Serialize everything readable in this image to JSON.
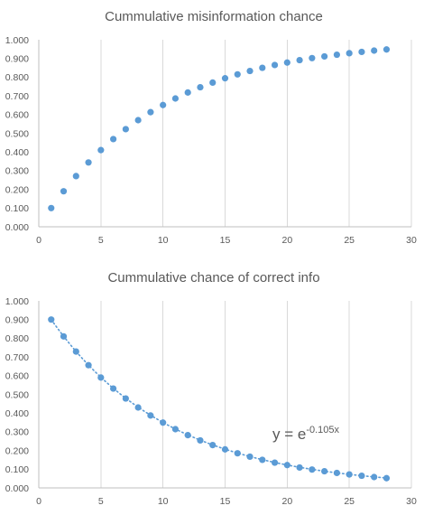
{
  "chart_data": [
    {
      "type": "scatter",
      "title": "Cummulative misinformation chance",
      "xlabel": "",
      "ylabel": "",
      "xlim": [
        0,
        30
      ],
      "ylim": [
        0,
        1
      ],
      "x_ticks": [
        "0",
        "5",
        "10",
        "15",
        "20",
        "25",
        "30"
      ],
      "y_ticks": [
        "0.000",
        "0.100",
        "0.200",
        "0.300",
        "0.400",
        "0.500",
        "0.600",
        "0.700",
        "0.800",
        "0.900",
        "1.000"
      ],
      "grid": "vertical",
      "legend": "none",
      "color": "#5b9bd5",
      "series": [
        {
          "x": [
            1,
            2,
            3,
            4,
            5,
            6,
            7,
            8,
            9,
            10,
            11,
            12,
            13,
            14,
            15,
            16,
            17,
            18,
            19,
            20,
            21,
            22,
            23,
            24,
            25,
            26,
            27,
            28
          ],
          "y": [
            0.1,
            0.19,
            0.271,
            0.344,
            0.41,
            0.469,
            0.522,
            0.57,
            0.613,
            0.651,
            0.686,
            0.718,
            0.746,
            0.771,
            0.794,
            0.815,
            0.833,
            0.85,
            0.865,
            0.878,
            0.891,
            0.902,
            0.911,
            0.92,
            0.928,
            0.935,
            0.942,
            0.948
          ]
        }
      ]
    },
    {
      "type": "scatter",
      "title": "Cummulative chance of correct info",
      "xlabel": "",
      "ylabel": "",
      "xlim": [
        0,
        30
      ],
      "ylim": [
        0,
        1
      ],
      "x_ticks": [
        "0",
        "5",
        "10",
        "15",
        "20",
        "25",
        "30"
      ],
      "y_ticks": [
        "0.000",
        "0.100",
        "0.200",
        "0.300",
        "0.400",
        "0.500",
        "0.600",
        "0.700",
        "0.800",
        "0.900",
        "1.000"
      ],
      "grid": "vertical",
      "legend": "none",
      "color": "#5b9bd5",
      "series": [
        {
          "x": [
            1,
            2,
            3,
            4,
            5,
            6,
            7,
            8,
            9,
            10,
            11,
            12,
            13,
            14,
            15,
            16,
            17,
            18,
            19,
            20,
            21,
            22,
            23,
            24,
            25,
            26,
            27,
            28
          ],
          "y": [
            0.9,
            0.81,
            0.729,
            0.656,
            0.59,
            0.531,
            0.478,
            0.43,
            0.387,
            0.349,
            0.314,
            0.282,
            0.254,
            0.229,
            0.206,
            0.185,
            0.167,
            0.15,
            0.135,
            0.122,
            0.109,
            0.098,
            0.089,
            0.08,
            0.072,
            0.065,
            0.058,
            0.052
          ]
        }
      ],
      "trendline": {
        "type": "exponential",
        "coefficient": -0.105,
        "label_base": "y = e",
        "label_exponent": "-0.105x"
      }
    }
  ]
}
